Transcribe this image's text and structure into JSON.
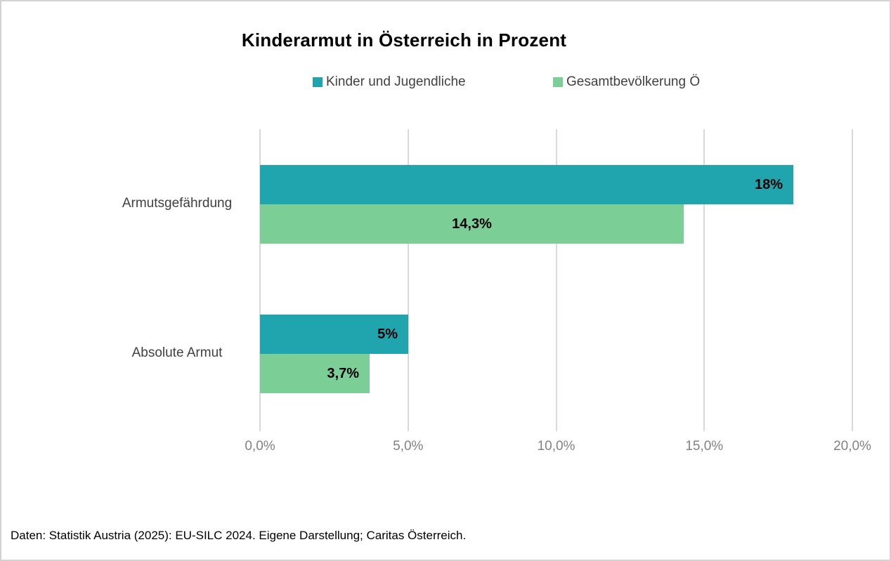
{
  "chart": {
    "title": "Kinderarmut in Österreich in Prozent"
  },
  "chart_data": {
    "type": "bar",
    "orientation": "horizontal",
    "title": "Kinderarmut in Österreich in Prozent",
    "categories": [
      "Armutsgefährdung",
      "Absolute Armut"
    ],
    "series": [
      {
        "name": "Kinder und Jugendliche",
        "color": "#20a5ae",
        "values": [
          18,
          5
        ],
        "data_labels": [
          "18%",
          "5%"
        ],
        "label_align": [
          "right",
          "right"
        ]
      },
      {
        "name": "Gesamtbevölkerung Ö",
        "color": "#7bce95",
        "values": [
          14.3,
          3.7
        ],
        "data_labels": [
          "14,3%",
          "3,7%"
        ],
        "label_align": [
          "center",
          "right"
        ]
      }
    ],
    "x_axis": {
      "min": 0,
      "max": 20,
      "tick_values": [
        0,
        5,
        10,
        15,
        20
      ],
      "tick_labels": [
        "0,0%",
        "5,0%",
        "10,0%",
        "15,0%",
        "20,0%"
      ]
    },
    "grid": "vertical",
    "gridline_color": "#d9d9d9",
    "legend_position": "top"
  },
  "footer": {
    "source": "Daten: Statistik Austria (2025): EU-SILC 2024. Eigene Darstellung; Caritas Österreich."
  }
}
